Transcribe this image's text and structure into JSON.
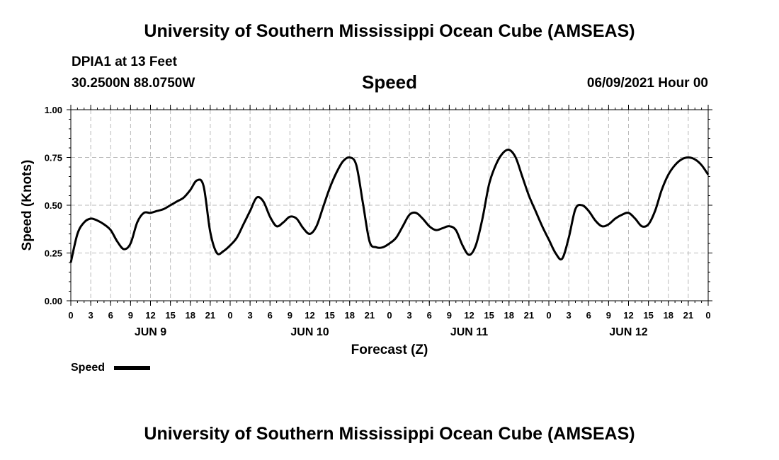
{
  "header": {
    "title": "University of Southern Mississippi Ocean Cube (AMSEAS)",
    "station": "DPIA1 at 13 Feet",
    "coordinates": "30.2500N  88.0750W",
    "variable": "Speed",
    "datetime": "06/09/2021 Hour 00"
  },
  "footer": {
    "title": "University of Southern Mississippi Ocean Cube (AMSEAS)"
  },
  "chart_data": {
    "type": "line",
    "title": "Speed",
    "xlabel": "Forecast (Z)",
    "ylabel": "Speed (Knots)",
    "xlim": [
      0,
      96
    ],
    "ylim": [
      0,
      1
    ],
    "yticks": [
      0,
      0.25,
      0.5,
      0.75,
      1.0
    ],
    "ytick_labels": [
      "0.00",
      "0.25",
      "0.50",
      "0.75",
      "1.00"
    ],
    "xtick_labels": [
      "0",
      "3",
      "6",
      "9",
      "12",
      "15",
      "18",
      "21",
      "0",
      "3",
      "6",
      "9",
      "12",
      "15",
      "18",
      "21",
      "0",
      "3",
      "6",
      "9",
      "12",
      "15",
      "18",
      "21",
      "0",
      "3",
      "6",
      "9",
      "12",
      "15",
      "18",
      "21",
      "0"
    ],
    "day_labels": [
      {
        "label": "JUN 9",
        "hour": 12
      },
      {
        "label": "JUN 10",
        "hour": 36
      },
      {
        "label": "JUN 11",
        "hour": 60
      },
      {
        "label": "JUN 12",
        "hour": 84
      }
    ],
    "grid": true,
    "legend": "bottom-left",
    "series": [
      {
        "name": "Speed",
        "x": [
          0,
          1,
          2,
          3,
          4,
          5,
          6,
          7,
          8,
          9,
          10,
          11,
          12,
          13,
          14,
          15,
          16,
          17,
          18,
          19,
          20,
          21,
          22,
          23,
          24,
          25,
          26,
          27,
          28,
          29,
          30,
          31,
          32,
          33,
          34,
          35,
          36,
          37,
          38,
          39,
          40,
          41,
          42,
          43,
          44,
          45,
          46,
          47,
          48,
          49,
          50,
          51,
          52,
          53,
          54,
          55,
          56,
          57,
          58,
          59,
          60,
          61,
          62,
          63,
          64,
          65,
          66,
          67,
          68,
          69,
          70,
          71,
          72,
          73,
          74,
          75,
          76,
          77,
          78,
          79,
          80,
          81,
          82,
          83,
          84,
          85,
          86,
          87,
          88,
          89,
          90,
          91,
          92,
          93,
          94,
          95,
          96
        ],
        "values": [
          0.2,
          0.35,
          0.41,
          0.43,
          0.42,
          0.4,
          0.37,
          0.31,
          0.27,
          0.3,
          0.41,
          0.46,
          0.46,
          0.47,
          0.48,
          0.5,
          0.52,
          0.54,
          0.58,
          0.63,
          0.6,
          0.36,
          0.25,
          0.26,
          0.29,
          0.33,
          0.4,
          0.47,
          0.54,
          0.52,
          0.44,
          0.39,
          0.41,
          0.44,
          0.43,
          0.38,
          0.35,
          0.39,
          0.49,
          0.59,
          0.67,
          0.73,
          0.75,
          0.71,
          0.51,
          0.31,
          0.28,
          0.28,
          0.3,
          0.33,
          0.39,
          0.45,
          0.46,
          0.43,
          0.39,
          0.37,
          0.38,
          0.39,
          0.37,
          0.29,
          0.24,
          0.29,
          0.43,
          0.61,
          0.71,
          0.77,
          0.79,
          0.75,
          0.65,
          0.55,
          0.47,
          0.39,
          0.32,
          0.25,
          0.22,
          0.33,
          0.48,
          0.5,
          0.47,
          0.42,
          0.39,
          0.4,
          0.43,
          0.45,
          0.46,
          0.43,
          0.39,
          0.4,
          0.47,
          0.58,
          0.66,
          0.71,
          0.74,
          0.75,
          0.74,
          0.71,
          0.66
        ]
      }
    ]
  }
}
